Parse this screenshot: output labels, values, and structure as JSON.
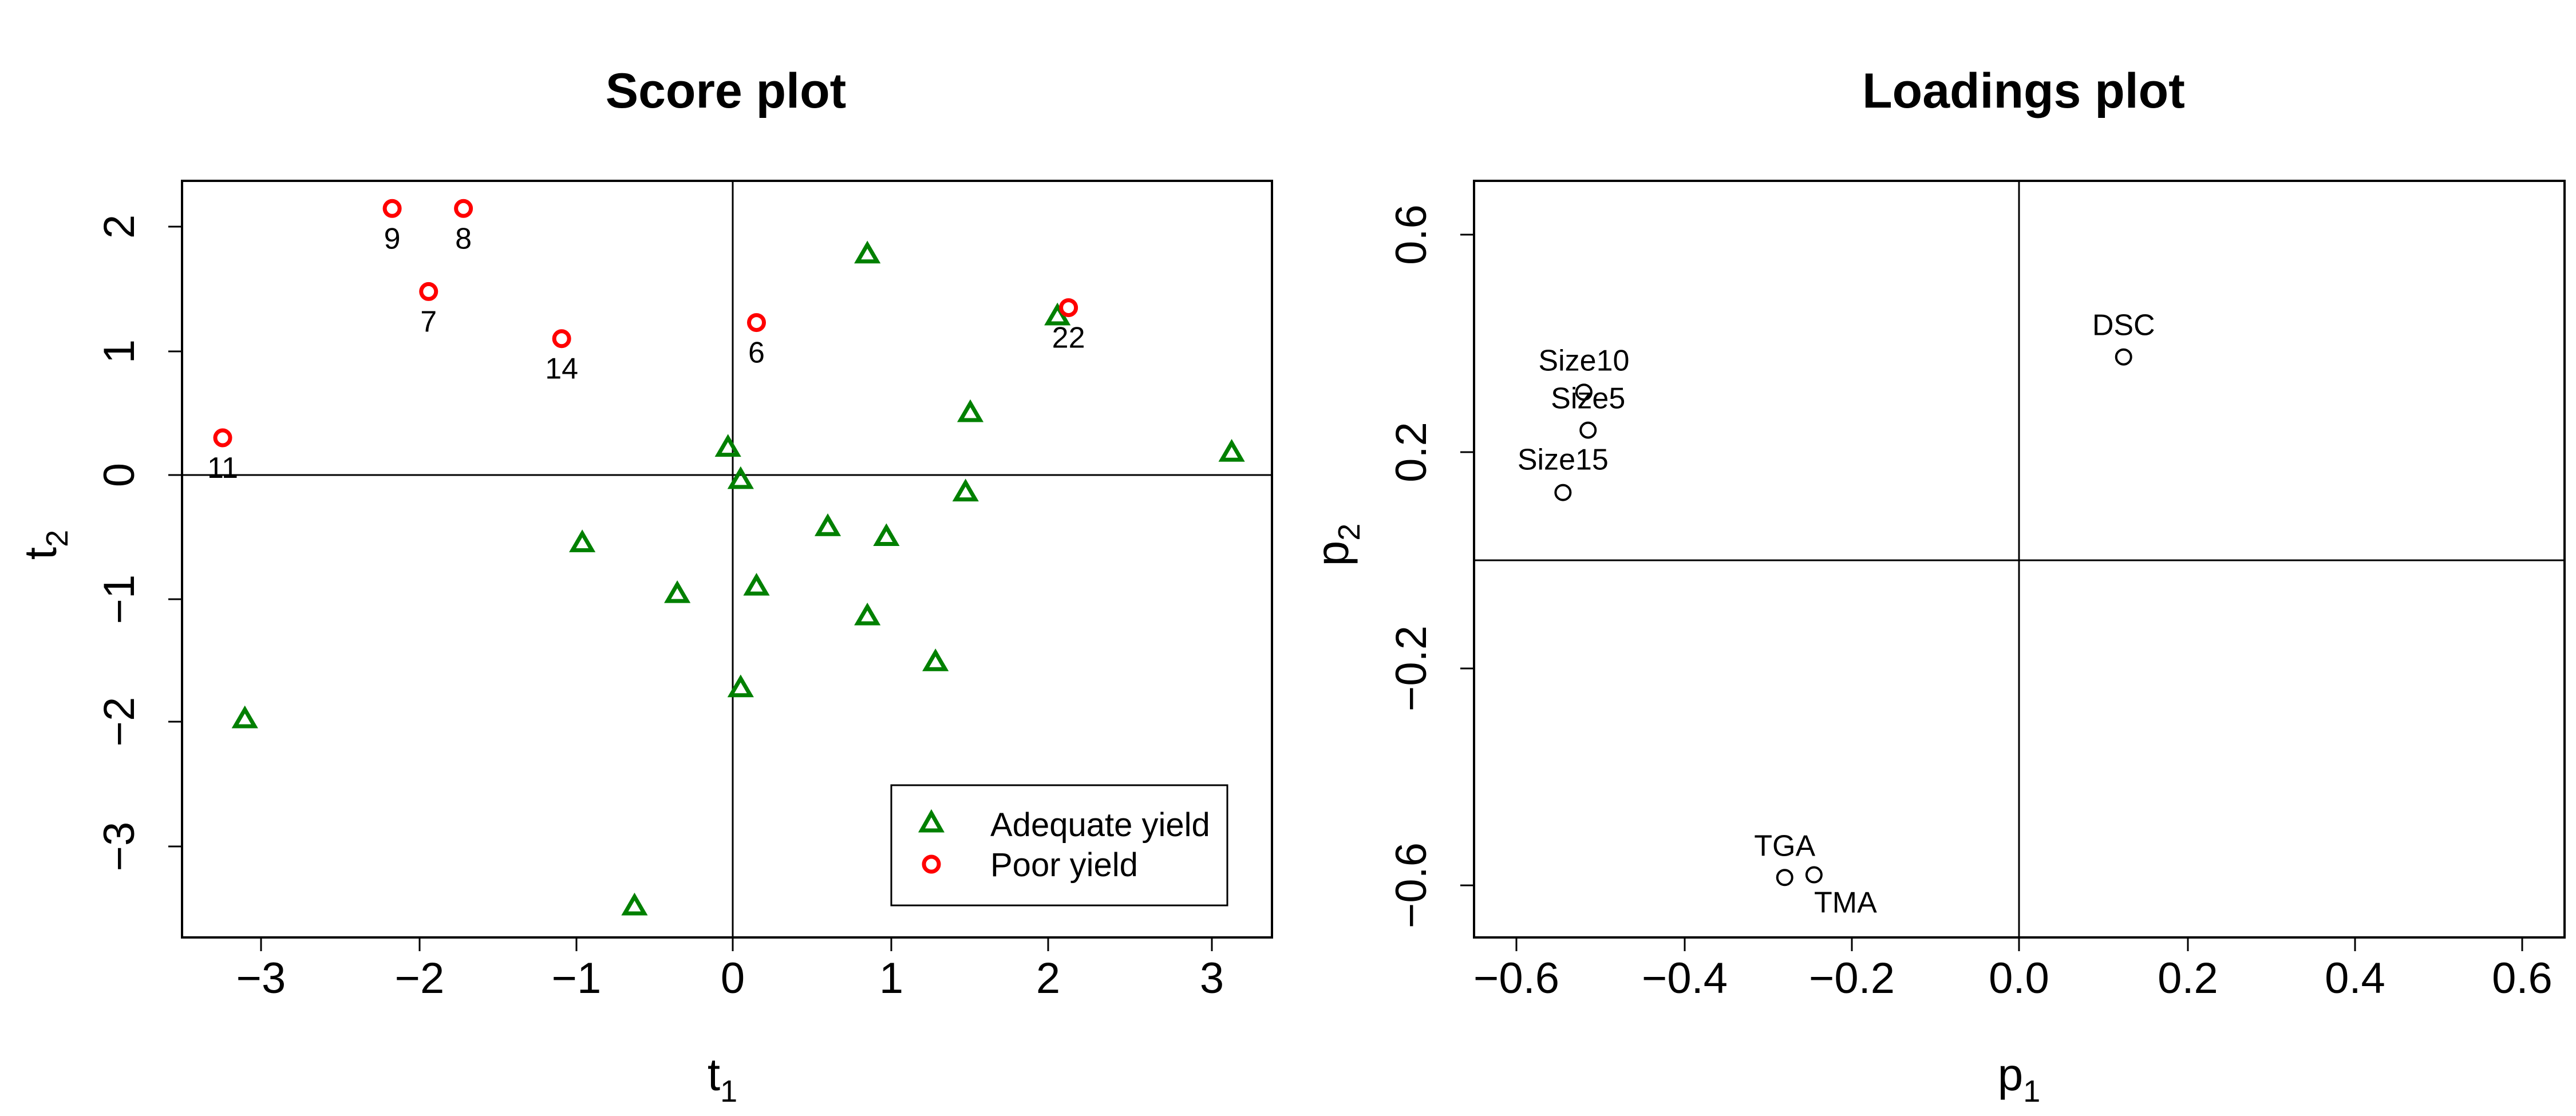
{
  "chart_data": [
    {
      "type": "scatter",
      "title": "Score plot",
      "xlabel": "t",
      "xlabel_sub": "1",
      "ylabel": "t",
      "ylabel_sub": "2",
      "xlim": [
        -3.5,
        3.4
      ],
      "ylim": [
        -3.7,
        2.35
      ],
      "xticks": [
        -3,
        -2,
        -1,
        0,
        1,
        2,
        3
      ],
      "yticks": [
        -3,
        -2,
        -1,
        0,
        1,
        2
      ],
      "xtick_labels": [
        "−3",
        "−2",
        "−1",
        "0",
        "1",
        "2",
        "3"
      ],
      "ytick_labels": [
        "−3",
        "−2",
        "−1",
        "0",
        "1",
        "2"
      ],
      "reference_lines": {
        "x": 0,
        "y": 0
      },
      "grid": false,
      "legend_position": "bottom-right",
      "series": [
        {
          "name": "Adequate yield",
          "marker": "triangle",
          "color": "#008000",
          "points": [
            {
              "x": 0.85,
              "y": 1.78
            },
            {
              "x": 2.05,
              "y": 1.28
            },
            {
              "x": 1.5,
              "y": 0.5
            },
            {
              "x": 3.15,
              "y": 0.18
            },
            {
              "x": -0.03,
              "y": 0.22
            },
            {
              "x": 0.05,
              "y": -0.04
            },
            {
              "x": 1.47,
              "y": -0.14
            },
            {
              "x": 0.6,
              "y": -0.42
            },
            {
              "x": 0.97,
              "y": -0.5
            },
            {
              "x": -0.95,
              "y": -0.55
            },
            {
              "x": -0.35,
              "y": -0.96
            },
            {
              "x": 0.15,
              "y": -0.9
            },
            {
              "x": 0.85,
              "y": -1.14
            },
            {
              "x": 1.28,
              "y": -1.51
            },
            {
              "x": 0.05,
              "y": -1.72
            },
            {
              "x": -3.08,
              "y": -1.97
            },
            {
              "x": -0.62,
              "y": -3.48
            }
          ]
        },
        {
          "name": "Poor yield",
          "marker": "circle",
          "color": "#ff0000",
          "points": [
            {
              "x": -2.15,
              "y": 2.15,
              "label": "9"
            },
            {
              "x": -1.7,
              "y": 2.15,
              "label": "8"
            },
            {
              "x": -1.92,
              "y": 1.48,
              "label": "7"
            },
            {
              "x": -1.08,
              "y": 1.1,
              "label": "14"
            },
            {
              "x": 0.15,
              "y": 1.23,
              "label": "6"
            },
            {
              "x": 2.12,
              "y": 1.35,
              "label": "22"
            },
            {
              "x": -3.22,
              "y": 0.3,
              "label": "11"
            }
          ]
        }
      ]
    },
    {
      "type": "scatter",
      "title": "Loadings plot",
      "xlabel": "p",
      "xlabel_sub": "1",
      "ylabel": "p",
      "ylabel_sub": "2",
      "xlim": [
        -0.65,
        0.65
      ],
      "ylim": [
        -0.7,
        0.7
      ],
      "xticks": [
        -0.6,
        -0.4,
        -0.2,
        0.0,
        0.2,
        0.4,
        0.6
      ],
      "yticks": [
        -0.6,
        -0.2,
        0.2,
        0.6
      ],
      "xtick_labels": [
        "−0.6",
        "−0.4",
        "−0.2",
        "0.0",
        "0.2",
        "0.4",
        "0.6"
      ],
      "ytick_labels": [
        "−0.6",
        "−0.2",
        "0.2",
        "0.6"
      ],
      "reference_lines": {
        "x": 0,
        "y": 0
      },
      "grid": false,
      "series": [
        {
          "marker": "open-circle",
          "color": "#000000",
          "points": [
            {
              "x": 0.125,
              "y": 0.375,
              "label": "DSC"
            },
            {
              "x": -0.52,
              "y": 0.31,
              "label": "Size10"
            },
            {
              "x": -0.515,
              "y": 0.24,
              "label": "Size5"
            },
            {
              "x": -0.545,
              "y": 0.125,
              "label": "Size15"
            },
            {
              "x": -0.28,
              "y": -0.585,
              "label": "TGA"
            },
            {
              "x": -0.245,
              "y": -0.58,
              "label": "TMA"
            }
          ]
        }
      ]
    }
  ]
}
